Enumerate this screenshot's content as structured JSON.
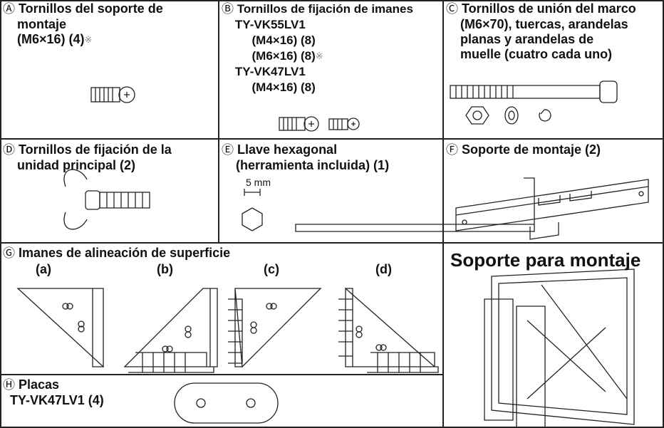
{
  "cells": [
    {
      "marker": "Ⓐ",
      "lines": [
        "Tornillos del soporte de",
        "montaje",
        "(M6×16) (4)"
      ],
      "note": "※"
    },
    {
      "marker": "Ⓑ",
      "lines": [
        "Tornillos de fijación de imanes",
        "TY-VK55LV1",
        "(M4×16) (8)",
        "(M6×16) (8)",
        "TY-VK47LV1",
        "(M4×16) (8)"
      ],
      "note": "※"
    },
    {
      "marker": "Ⓒ",
      "lines": [
        "Tornillos de unión del marco",
        "(M6×70), tuercas, arandelas",
        "planas y arandelas de",
        "muelle (cuatro cada uno)"
      ]
    },
    {
      "marker": "Ⓓ",
      "lines": [
        "Tornillos de fijación de la",
        "unidad principal (2)"
      ]
    },
    {
      "marker": "Ⓔ",
      "lines": [
        "Llave hexagonal",
        "(herramienta incluida) (1)"
      ],
      "dimension": "5 mm"
    },
    {
      "marker": "Ⓕ",
      "lines": [
        "Soporte de montaje (2)"
      ]
    },
    {
      "marker": "Ⓖ",
      "lines": [
        "Imanes de alineación de superficie"
      ],
      "parts": [
        "(a)",
        "(b)",
        "(c)",
        "(d)"
      ]
    },
    {
      "marker": "Ⓗ",
      "lines": [
        "Placas",
        "TY-VK47LV1 (4)"
      ]
    },
    {
      "lines": [
        "Soporte para montaje"
      ]
    }
  ]
}
